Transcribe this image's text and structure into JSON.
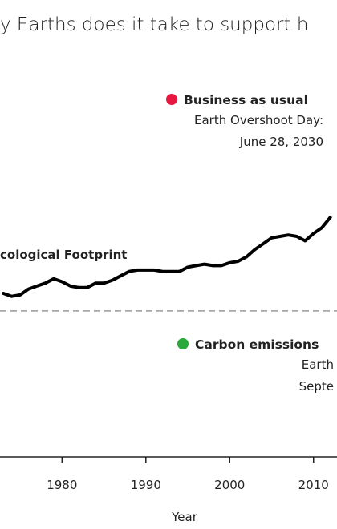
{
  "chart_data": {
    "type": "line",
    "title": "y Earths does it take to support h",
    "x_label": "Year",
    "x": [
      1973,
      1974,
      1975,
      1976,
      1977,
      1978,
      1979,
      1980,
      1981,
      1982,
      1983,
      1984,
      1985,
      1986,
      1987,
      1988,
      1989,
      1990,
      1991,
      1992,
      1993,
      1994,
      1995,
      1996,
      1997,
      1998,
      1999,
      2000,
      2001,
      2002,
      2003,
      2004,
      2005,
      2006,
      2007,
      2008,
      2009,
      2010,
      2011,
      2012
    ],
    "series": [
      {
        "name": "cological Footprint",
        "color": "#000000",
        "values": [
          1.12,
          1.1,
          1.11,
          1.15,
          1.17,
          1.19,
          1.22,
          1.2,
          1.17,
          1.16,
          1.16,
          1.19,
          1.19,
          1.21,
          1.24,
          1.27,
          1.28,
          1.28,
          1.28,
          1.27,
          1.27,
          1.27,
          1.3,
          1.31,
          1.32,
          1.31,
          1.31,
          1.33,
          1.34,
          1.37,
          1.42,
          1.46,
          1.5,
          1.51,
          1.52,
          1.51,
          1.48,
          1.53,
          1.57,
          1.64
        ]
      }
    ],
    "xlim": [
      1972.6,
      2012.8
    ],
    "xticks": [
      1980,
      1990,
      2000,
      2010
    ],
    "ylim": [
      0,
      3.13
    ],
    "reference_line": 1,
    "annotations": [
      {
        "label": "Business as usual",
        "color": "#e8173f",
        "lines": [
          "Earth Overshoot Day:",
          "June 28, 2030"
        ]
      },
      {
        "label": "Carbon emissions",
        "color": "#2aa83a",
        "lines": [
          "Earth",
          "Septe"
        ]
      }
    ]
  }
}
